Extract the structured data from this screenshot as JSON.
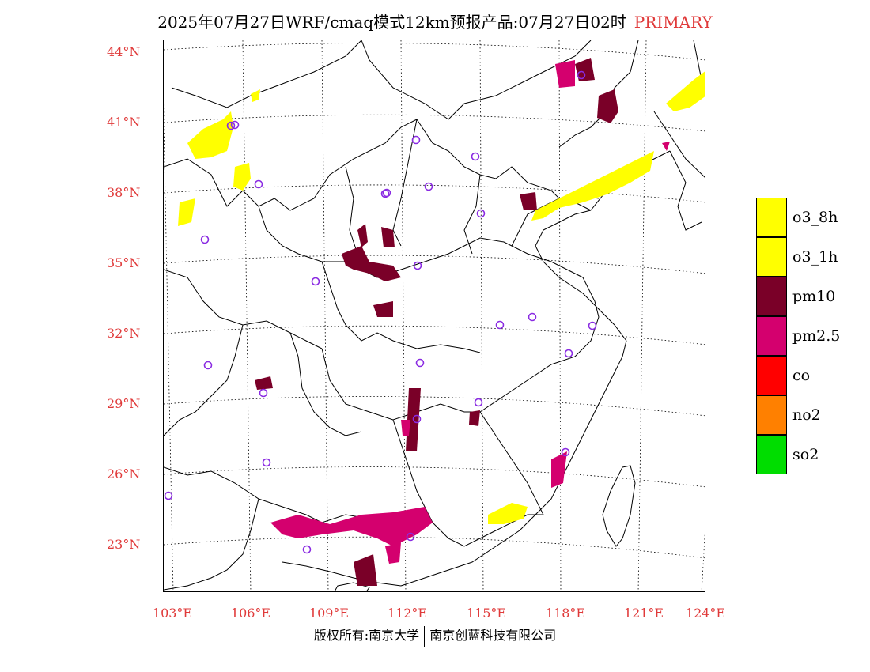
{
  "title": {
    "main": "2025年07月27日WRF/cmaq模式12km预报产品:07月27日02时",
    "tag": "PRIMARY"
  },
  "axes": {
    "latitudes": [
      "44°N",
      "41°N",
      "38°N",
      "35°N",
      "32°N",
      "29°N",
      "26°N",
      "23°N"
    ],
    "longitudes": [
      "103°E",
      "106°E",
      "109°E",
      "112°E",
      "115°E",
      "118°E",
      "121°E",
      "124°E"
    ]
  },
  "legend": [
    {
      "label": "o3_8h",
      "color": "#ffff00"
    },
    {
      "label": "o3_1h",
      "color": "#ffff00"
    },
    {
      "label": "pm10",
      "color": "#7a0028"
    },
    {
      "label": "pm2.5",
      "color": "#d4006e"
    },
    {
      "label": "co",
      "color": "#ff0000"
    },
    {
      "label": "no2",
      "color": "#ff8000"
    },
    {
      "label": "so2",
      "color": "#00dd00"
    }
  ],
  "footer": {
    "left": "版权所有:南京大学",
    "right": "南京创蓝科技有限公司"
  },
  "colors": {
    "o3": "#ffff00",
    "pm10": "#7a0028",
    "pm25": "#d4006e",
    "label_red": "#e03a3a",
    "station": "#8a2be2"
  }
}
